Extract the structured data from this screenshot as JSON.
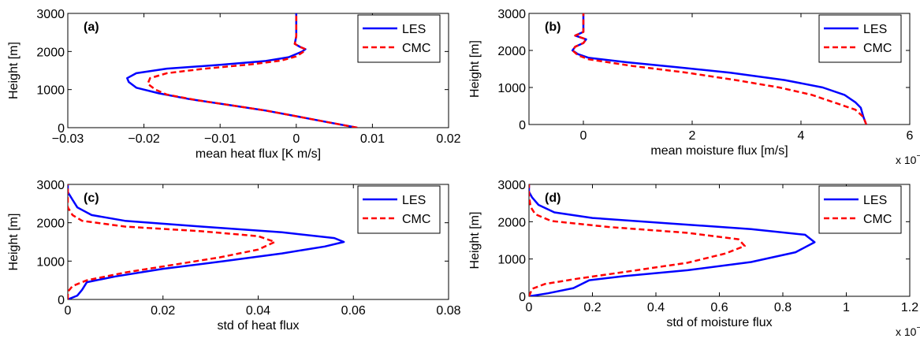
{
  "colors": {
    "LES": "#0000ff",
    "CMC": "#ff0000",
    "axes": "#000000",
    "background": "#ffffff"
  },
  "chart_data": [
    {
      "type": "line",
      "panel": "(a)",
      "xlabel": "mean heat flux [K m/s]",
      "ylabel": "Height [m]",
      "xlim": [
        -0.03,
        0.02
      ],
      "ylim": [
        0,
        3000
      ],
      "xticks": [
        -0.03,
        -0.02,
        -0.01,
        0,
        0.01,
        0.02
      ],
      "xtick_labels": [
        "−0.03",
        "−0.02",
        "−0.01",
        "0",
        "0.01",
        "0.02"
      ],
      "yticks": [
        0,
        1000,
        2000,
        3000
      ],
      "ytick_labels": [
        "0",
        "1000",
        "2000",
        "3000"
      ],
      "exponent_label": "",
      "legend": {
        "position": "top-right",
        "entries": [
          "LES",
          "CMC"
        ]
      },
      "series": [
        {
          "name": "LES",
          "style": "solid",
          "color": "#0000ff",
          "points": [
            [
              0.008,
              0
            ],
            [
              0.004,
              150
            ],
            [
              0.0,
              300
            ],
            [
              -0.004,
              450
            ],
            [
              -0.009,
              600
            ],
            [
              -0.014,
              750
            ],
            [
              -0.018,
              900
            ],
            [
              -0.021,
              1050
            ],
            [
              -0.022,
              1200
            ],
            [
              -0.0222,
              1300
            ],
            [
              -0.021,
              1430
            ],
            [
              -0.017,
              1550
            ],
            [
              -0.01,
              1650
            ],
            [
              -0.004,
              1750
            ],
            [
              -0.001,
              1850
            ],
            [
              0.0008,
              2000
            ],
            [
              0.0012,
              2060
            ],
            [
              0.0005,
              2120
            ],
            [
              -0.0002,
              2200
            ],
            [
              0.0,
              2400
            ],
            [
              0.0,
              2700
            ],
            [
              0.0,
              3000
            ]
          ]
        },
        {
          "name": "CMC",
          "style": "dashed",
          "color": "#ff0000",
          "points": [
            [
              0.008,
              0
            ],
            [
              0.004,
              150
            ],
            [
              0.0,
              300
            ],
            [
              -0.004,
              450
            ],
            [
              -0.008,
              570
            ],
            [
              -0.013,
              720
            ],
            [
              -0.017,
              870
            ],
            [
              -0.0185,
              1000
            ],
            [
              -0.0195,
              1150
            ],
            [
              -0.0192,
              1300
            ],
            [
              -0.017,
              1430
            ],
            [
              -0.012,
              1550
            ],
            [
              -0.006,
              1660
            ],
            [
              -0.002,
              1760
            ],
            [
              0.0,
              1870
            ],
            [
              0.001,
              2000
            ],
            [
              0.0012,
              2060
            ],
            [
              0.0005,
              2120
            ],
            [
              -0.0002,
              2200
            ],
            [
              0.0,
              2400
            ],
            [
              0.0,
              2700
            ],
            [
              0.0,
              3000
            ]
          ]
        }
      ]
    },
    {
      "type": "line",
      "panel": "(b)",
      "xlabel": "mean moisture flux [m/s]",
      "ylabel": "Height [m]",
      "xlim": [
        -1,
        6
      ],
      "ylim": [
        0,
        3000
      ],
      "xticks": [
        0,
        2,
        4,
        6
      ],
      "xtick_labels": [
        "0",
        "2",
        "4",
        "6"
      ],
      "yticks": [
        0,
        1000,
        2000,
        3000
      ],
      "ytick_labels": [
        "0",
        "1000",
        "2000",
        "3000"
      ],
      "exponent_label": "x 10",
      "exponent": "−5",
      "legend": {
        "position": "top-right",
        "entries": [
          "LES",
          "CMC"
        ]
      },
      "series": [
        {
          "name": "LES",
          "style": "solid",
          "color": "#0000ff",
          "points": [
            [
              5.2,
              0
            ],
            [
              5.15,
              200
            ],
            [
              5.1,
              450
            ],
            [
              5.0,
              600
            ],
            [
              4.8,
              800
            ],
            [
              4.4,
              1000
            ],
            [
              3.7,
              1200
            ],
            [
              2.7,
              1400
            ],
            [
              1.7,
              1550
            ],
            [
              0.8,
              1680
            ],
            [
              0.1,
              1800
            ],
            [
              -0.1,
              1900
            ],
            [
              -0.2,
              2000
            ],
            [
              -0.15,
              2100
            ],
            [
              0.0,
              2200
            ],
            [
              0.05,
              2300
            ],
            [
              -0.15,
              2400
            ],
            [
              0.0,
              2500
            ],
            [
              0.0,
              2700
            ],
            [
              0.0,
              3000
            ]
          ]
        },
        {
          "name": "CMC",
          "style": "dashed",
          "color": "#ff0000",
          "points": [
            [
              5.2,
              0
            ],
            [
              5.15,
              200
            ],
            [
              5.0,
              400
            ],
            [
              4.6,
              600
            ],
            [
              4.2,
              800
            ],
            [
              3.6,
              1000
            ],
            [
              2.8,
              1200
            ],
            [
              1.9,
              1400
            ],
            [
              0.9,
              1580
            ],
            [
              0.1,
              1760
            ],
            [
              -0.1,
              1870
            ],
            [
              -0.2,
              2000
            ],
            [
              -0.15,
              2100
            ],
            [
              0.0,
              2200
            ],
            [
              0.05,
              2300
            ],
            [
              -0.15,
              2400
            ],
            [
              0.0,
              2500
            ],
            [
              0.0,
              2700
            ],
            [
              0.0,
              3000
            ]
          ]
        }
      ]
    },
    {
      "type": "line",
      "panel": "(c)",
      "xlabel": "std of heat flux",
      "ylabel": "Height [m]",
      "xlim": [
        0,
        0.08
      ],
      "ylim": [
        0,
        3000
      ],
      "xticks": [
        0,
        0.02,
        0.04,
        0.06,
        0.08
      ],
      "xtick_labels": [
        "0",
        "0.02",
        "0.04",
        "0.06",
        "0.08"
      ],
      "yticks": [
        0,
        1000,
        2000,
        3000
      ],
      "ytick_labels": [
        "0",
        "1000",
        "2000",
        "3000"
      ],
      "exponent_label": "",
      "legend": {
        "position": "top-right",
        "entries": [
          "LES",
          "CMC"
        ]
      },
      "series": [
        {
          "name": "LES",
          "style": "solid",
          "color": "#0000ff",
          "points": [
            [
              0.0,
              0
            ],
            [
              0.002,
              100
            ],
            [
              0.003,
              250
            ],
            [
              0.004,
              450
            ],
            [
              0.01,
              600
            ],
            [
              0.02,
              800
            ],
            [
              0.033,
              1000
            ],
            [
              0.045,
              1200
            ],
            [
              0.054,
              1380
            ],
            [
              0.058,
              1500
            ],
            [
              0.056,
              1600
            ],
            [
              0.045,
              1750
            ],
            [
              0.028,
              1900
            ],
            [
              0.012,
              2050
            ],
            [
              0.005,
              2200
            ],
            [
              0.002,
              2400
            ],
            [
              0.001,
              2600
            ],
            [
              0.0,
              2800
            ],
            [
              0.0,
              3000
            ]
          ]
        },
        {
          "name": "CMC",
          "style": "dashed",
          "color": "#ff0000",
          "points": [
            [
              0.0,
              0
            ],
            [
              0.0,
              200
            ],
            [
              0.001,
              350
            ],
            [
              0.004,
              500
            ],
            [
              0.012,
              700
            ],
            [
              0.022,
              900
            ],
            [
              0.032,
              1100
            ],
            [
              0.04,
              1300
            ],
            [
              0.0435,
              1500
            ],
            [
              0.04,
              1650
            ],
            [
              0.028,
              1780
            ],
            [
              0.012,
              1900
            ],
            [
              0.003,
              2050
            ],
            [
              0.001,
              2200
            ],
            [
              0.0,
              2400
            ],
            [
              0.0,
              2700
            ],
            [
              0.0,
              3000
            ]
          ]
        }
      ]
    },
    {
      "type": "line",
      "panel": "(d)",
      "xlabel": "std of moisture flux",
      "ylabel": "Height [m]",
      "xlim": [
        0,
        1.2
      ],
      "ylim": [
        0,
        3000
      ],
      "xticks": [
        0,
        0.2,
        0.4,
        0.6,
        0.8,
        1,
        1.2
      ],
      "xtick_labels": [
        "0",
        "0.2",
        "0.4",
        "0.6",
        "0.8",
        "1",
        "1.2"
      ],
      "yticks": [
        0,
        1000,
        2000,
        3000
      ],
      "ytick_labels": [
        "0",
        "1000",
        "2000",
        "3000"
      ],
      "exponent_label": "x 10",
      "exponent": "−4",
      "legend": {
        "position": "top-right",
        "entries": [
          "LES",
          "CMC"
        ]
      },
      "series": [
        {
          "name": "LES",
          "style": "solid",
          "color": "#0000ff",
          "points": [
            [
              0.0,
              0
            ],
            [
              0.06,
              80
            ],
            [
              0.14,
              220
            ],
            [
              0.19,
              430
            ],
            [
              0.3,
              540
            ],
            [
              0.5,
              700
            ],
            [
              0.7,
              920
            ],
            [
              0.84,
              1180
            ],
            [
              0.9,
              1450
            ],
            [
              0.87,
              1650
            ],
            [
              0.7,
              1800
            ],
            [
              0.45,
              1950
            ],
            [
              0.2,
              2100
            ],
            [
              0.08,
              2250
            ],
            [
              0.03,
              2450
            ],
            [
              0.01,
              2650
            ],
            [
              0.0,
              2800
            ],
            [
              0.0,
              3000
            ]
          ]
        },
        {
          "name": "CMC",
          "style": "dashed",
          "color": "#ff0000",
          "points": [
            [
              0.0,
              0
            ],
            [
              0.005,
              100
            ],
            [
              0.01,
              200
            ],
            [
              0.05,
              330
            ],
            [
              0.15,
              470
            ],
            [
              0.3,
              650
            ],
            [
              0.5,
              900
            ],
            [
              0.62,
              1150
            ],
            [
              0.68,
              1350
            ],
            [
              0.66,
              1530
            ],
            [
              0.5,
              1700
            ],
            [
              0.25,
              1860
            ],
            [
              0.07,
              2020
            ],
            [
              0.02,
              2200
            ],
            [
              0.005,
              2400
            ],
            [
              0.0,
              2700
            ],
            [
              0.0,
              3000
            ]
          ]
        }
      ]
    }
  ]
}
